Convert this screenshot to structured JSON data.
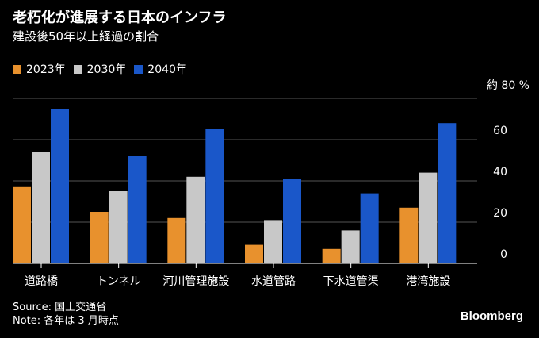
{
  "title": "老朽化が進展する日本のインフラ",
  "subtitle": "建設後50年以上経過の割合",
  "unit_label": "約 80 %",
  "source": "Source: 国土交通省",
  "note": "Note: 各年は 3 月時点",
  "brand": "Bloomberg",
  "colors": {
    "background": "#000000",
    "grid": "#555555",
    "2023年": "#E8912D",
    "2030年": "#C8C8C8",
    "2040年": "#1A57C9"
  },
  "chart_data": {
    "type": "bar",
    "title": "老朽化が進展する日本のインフラ",
    "subtitle": "建設後50年以上経過の割合",
    "categories": [
      "道路橋",
      "トンネル",
      "河川管理施設",
      "水道管路",
      "下水道管渠",
      "港湾施設"
    ],
    "series": [
      {
        "name": "2023年",
        "values": [
          37,
          25,
          22,
          9,
          7,
          27
        ]
      },
      {
        "name": "2030年",
        "values": [
          54,
          35,
          42,
          21,
          16,
          44
        ]
      },
      {
        "name": "2040年",
        "values": [
          75,
          52,
          65,
          41,
          34,
          68
        ]
      }
    ],
    "y_ticks": [
      "0",
      "20",
      "40",
      "60"
    ],
    "ylim": [
      0,
      80
    ],
    "grid": true,
    "legend_position": "top-left"
  }
}
